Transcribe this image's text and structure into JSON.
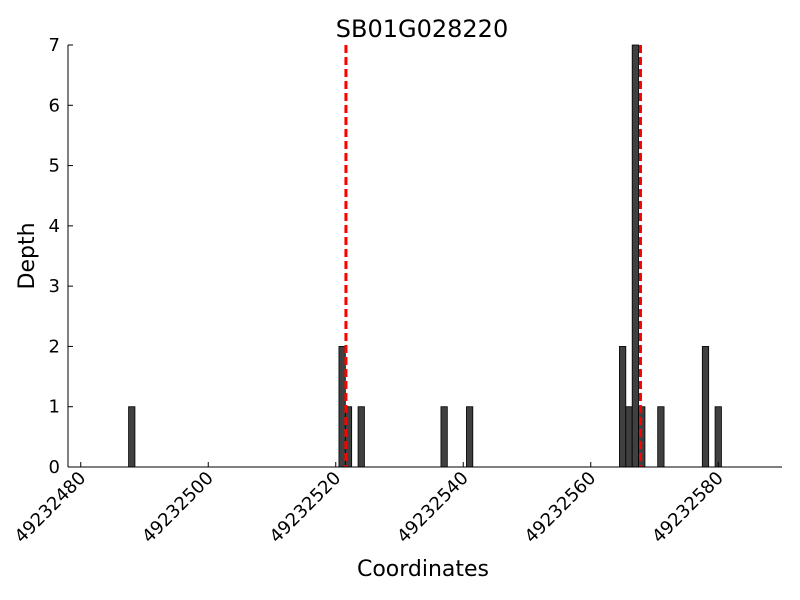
{
  "chart_data": {
    "type": "bar",
    "title": "SB01G028220",
    "xlabel": "Coordinates",
    "ylabel": "Depth",
    "xlim": [
      49232478,
      49232590
    ],
    "ylim": [
      0,
      7
    ],
    "x_ticks": [
      49232480,
      49232500,
      49232520,
      49232540,
      49232560,
      49232580
    ],
    "y_ticks": [
      0,
      1,
      2,
      3,
      4,
      5,
      6,
      7
    ],
    "bar_width": 1,
    "bar_color": "#404040",
    "points": [
      {
        "x": 49232488,
        "y": 1
      },
      {
        "x": 49232521,
        "y": 2
      },
      {
        "x": 49232522,
        "y": 1
      },
      {
        "x": 49232524,
        "y": 1
      },
      {
        "x": 49232537,
        "y": 1
      },
      {
        "x": 49232541,
        "y": 1
      },
      {
        "x": 49232565,
        "y": 2
      },
      {
        "x": 49232566,
        "y": 1
      },
      {
        "x": 49232567,
        "y": 7
      },
      {
        "x": 49232568,
        "y": 1
      },
      {
        "x": 49232571,
        "y": 1
      },
      {
        "x": 49232578,
        "y": 2
      },
      {
        "x": 49232580,
        "y": 1
      }
    ],
    "reference_lines": [
      {
        "x": 49232521.6,
        "color": "#ff0000",
        "style": "dashed"
      },
      {
        "x": 49232567.8,
        "color": "#ff0000",
        "style": "dashed"
      }
    ],
    "grid": false,
    "legend": "none"
  }
}
